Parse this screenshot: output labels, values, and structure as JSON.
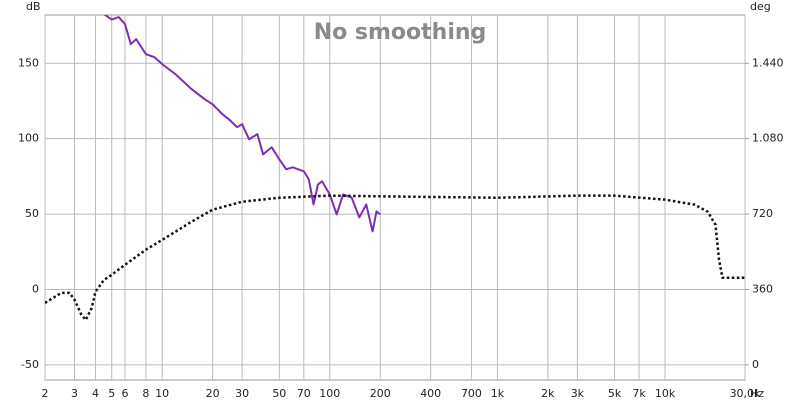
{
  "chart_data": {
    "type": "line",
    "title": "No smoothing",
    "x_label": "Hz",
    "y_label": "dB",
    "y2_label": "deg",
    "xlog": true,
    "grid": true,
    "xlim": [
      2,
      30000
    ],
    "xticks": [
      2,
      3,
      4,
      5,
      6,
      8,
      10,
      20,
      30,
      50,
      70,
      100,
      200,
      400,
      700,
      {
        "value": 1000,
        "label": "1k"
      },
      {
        "value": 2000,
        "label": "2k"
      },
      {
        "value": 3000,
        "label": "3k"
      },
      {
        "value": 5000,
        "label": "5k"
      },
      {
        "value": 7000,
        "label": "7k"
      },
      {
        "value": 10000,
        "label": "10k"
      },
      {
        "value": 30000,
        "label": "30,0k"
      }
    ],
    "ylim": [
      -60,
      182
    ],
    "yticks": [
      -50,
      0,
      50,
      100,
      150
    ],
    "y2lim": [
      -72,
      1670.4
    ],
    "y2ticks": [
      0,
      360,
      720,
      {
        "value": 1080,
        "label": "1.080"
      },
      {
        "value": 1440,
        "label": "1.440"
      }
    ],
    "series": [
      {
        "color": "#7b2fb5",
        "dash": false,
        "x": [
          4.5,
          5,
          5.5,
          6,
          6.5,
          7,
          8,
          9,
          10,
          12,
          15,
          18,
          20,
          23,
          25,
          28,
          30,
          33,
          37,
          40,
          45,
          50,
          55,
          60,
          70,
          75,
          80,
          85,
          90,
          100,
          110,
          120,
          135,
          150,
          165,
          180,
          190,
          200
        ],
        "values": [
          182.6,
          179,
          180.6,
          176,
          162.7,
          166,
          156,
          154,
          149.4,
          142.8,
          132.8,
          126,
          122.8,
          116,
          112.9,
          107.6,
          109.6,
          99.6,
          103,
          89.6,
          94.3,
          86.3,
          79.7,
          81,
          78.4,
          73,
          56.4,
          69.7,
          71.7,
          63,
          49.8,
          63,
          61,
          47.8,
          56.4,
          38.5,
          51.8,
          49.8
        ]
      },
      {
        "color": "#111111",
        "dash": true,
        "axis": "y2",
        "x": [
          2,
          2.5,
          2.8,
          3,
          3.3,
          3.5,
          3.8,
          4,
          4.5,
          5,
          6,
          8,
          10,
          15,
          20,
          30,
          50,
          100,
          300,
          1000,
          3000,
          5000,
          10000,
          15000,
          18000,
          20000,
          21000,
          22000,
          25000,
          30000
        ],
        "values": [
          296,
          344,
          344,
          311,
          239,
          215,
          272,
          349,
          406,
          430,
          478,
          550,
          597,
          684,
          741,
          779,
          798,
          808,
          803,
          798,
          808,
          808,
          789,
          765,
          731,
          669,
          502,
          416,
          416,
          416
        ]
      }
    ]
  }
}
